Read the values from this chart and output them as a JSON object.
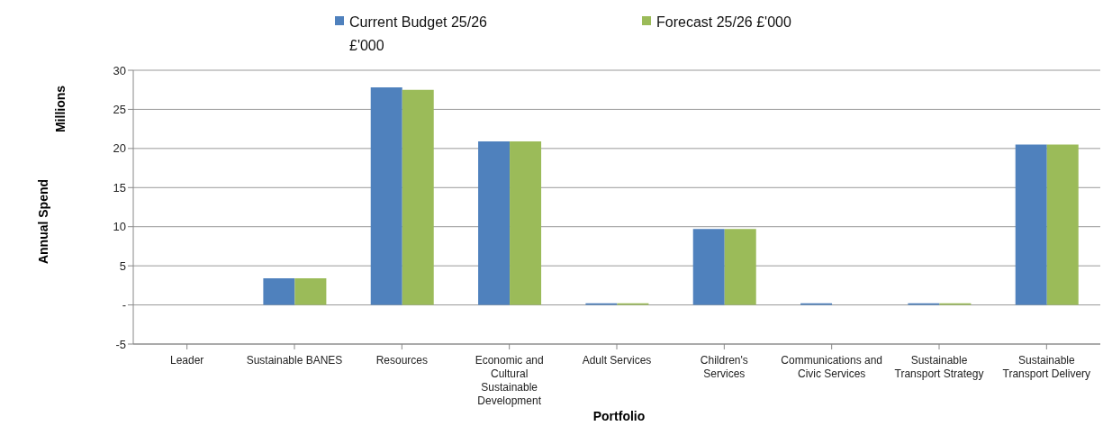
{
  "chart_data": {
    "type": "bar",
    "xlabel": "Portfolio",
    "ylabel": "Annual Spend",
    "annotations": [
      "Millions"
    ],
    "categories": [
      "Leader",
      "Sustainable BANES",
      "Resources",
      "Economic and Cultural Sustainable Development",
      "Adult Services",
      "Children's Services",
      "Communications and Civic Services",
      "Sustainable Transport Strategy",
      "Sustainable Transport Delivery"
    ],
    "series": [
      {
        "name": "Current Budget 25/26 £'000",
        "color": "#4f81bd",
        "values": [
          0,
          3.4,
          27.8,
          20.9,
          0.2,
          9.7,
          0.2,
          0.2,
          20.5
        ]
      },
      {
        "name": "Forecast 25/26 £'000",
        "color": "#9bbb59",
        "values": [
          0,
          3.4,
          27.5,
          20.9,
          0.2,
          9.7,
          0,
          0.2,
          20.5
        ]
      }
    ],
    "ylim": [
      -5,
      30
    ],
    "yticks": [
      -5,
      {
        "value": 0,
        "label": "-"
      },
      5,
      10,
      15,
      20,
      25,
      30
    ],
    "grid": "y",
    "legend": "top"
  }
}
